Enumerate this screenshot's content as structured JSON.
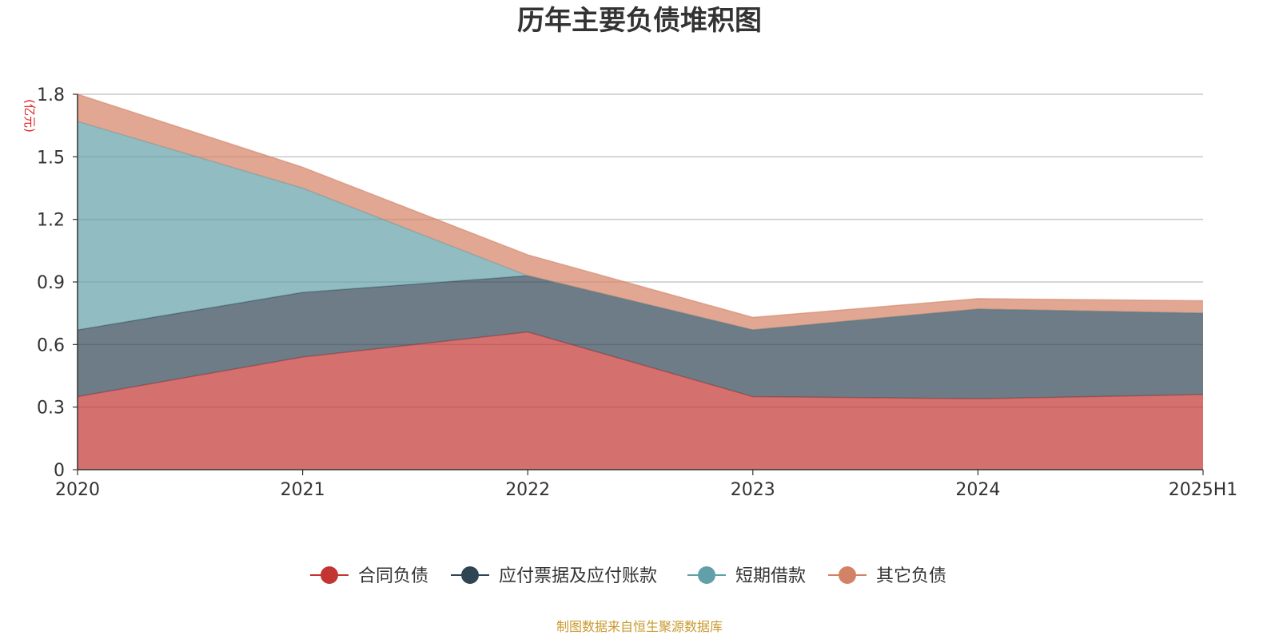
{
  "chart_data": {
    "type": "area",
    "stacked": true,
    "title": "历年主要负债堆积图",
    "ylabel": "(亿元)",
    "xlabel": "",
    "categories": [
      "2020",
      "2021",
      "2022",
      "2023",
      "2024",
      "2025H1"
    ],
    "ylim": [
      0,
      1.8
    ],
    "yticks": [
      "0",
      "0.3",
      "0.6",
      "0.9",
      "1.2",
      "1.5",
      "1.8"
    ],
    "grid": true,
    "legend_position": "bottom-center",
    "series": [
      {
        "name": "合同负债",
        "color": "#c23531",
        "values": [
          0.35,
          0.54,
          0.66,
          0.35,
          0.34,
          0.36
        ]
      },
      {
        "name": "应付票据及应付账款",
        "color": "#2f4554",
        "values": [
          0.32,
          0.31,
          0.27,
          0.32,
          0.43,
          0.39
        ]
      },
      {
        "name": "短期借款",
        "color": "#61a0a8",
        "values": [
          1.0,
          0.5,
          0.0,
          0.0,
          0.0,
          0.0
        ]
      },
      {
        "name": "其它负债",
        "color": "#d48265",
        "values": [
          0.13,
          0.1,
          0.1,
          0.06,
          0.05,
          0.06
        ]
      }
    ]
  },
  "source": {
    "text": "制图数据来自恒生聚源数据库",
    "color": "#c99a2e"
  },
  "colors": {
    "unit_label": "#e02020",
    "grid": "#c8c8c8",
    "axis": "#333333"
  }
}
